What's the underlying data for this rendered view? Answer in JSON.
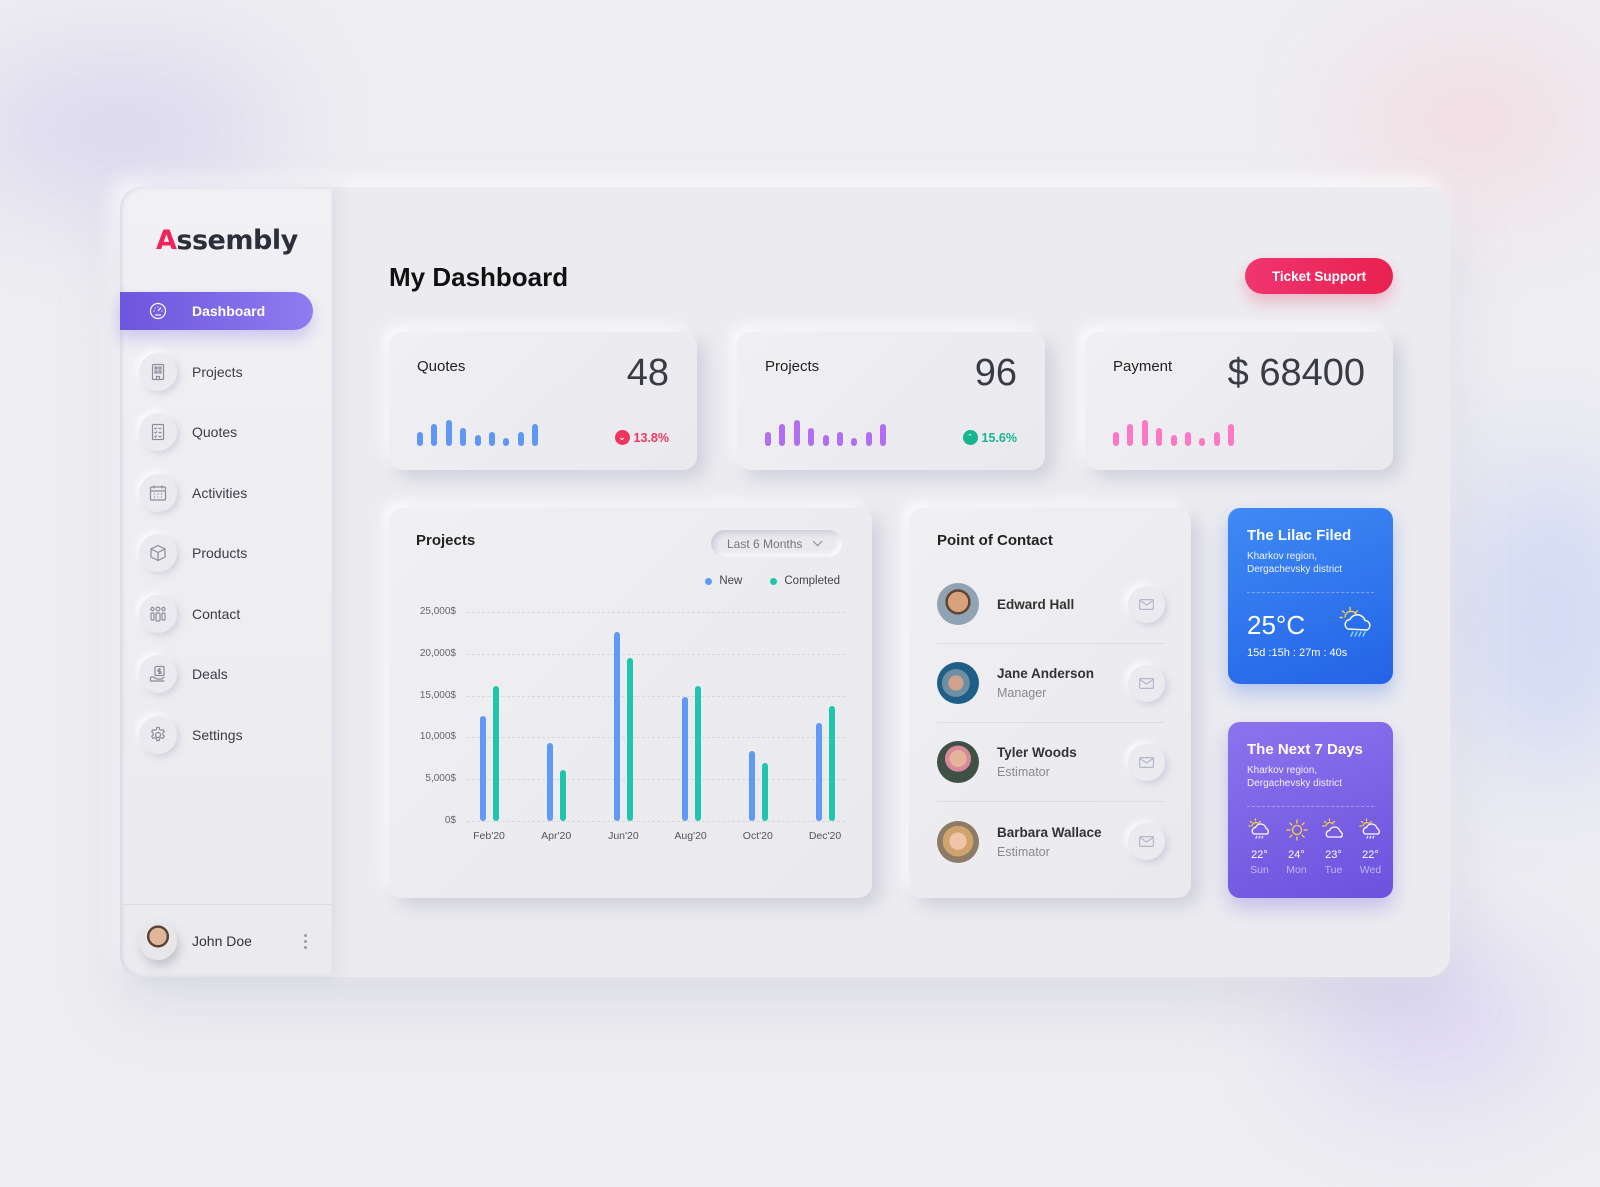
{
  "app": {
    "logo_prefix": "A",
    "logo_rest": "ssembly",
    "brand_color": "#f0245a",
    "accent_color": "#6d55dd"
  },
  "sidebar": {
    "items": [
      {
        "label": "Dashboard",
        "icon": "dashboard-gauge-icon",
        "active": true
      },
      {
        "label": "Projects",
        "icon": "building-icon",
        "active": false
      },
      {
        "label": "Quotes",
        "icon": "checklist-document-icon",
        "active": false
      },
      {
        "label": "Activities",
        "icon": "calendar-icon",
        "active": false
      },
      {
        "label": "Products",
        "icon": "box-icon",
        "active": false
      },
      {
        "label": "Contact",
        "icon": "people-group-icon",
        "active": false
      },
      {
        "label": "Deals",
        "icon": "hand-dollar-icon",
        "active": false
      },
      {
        "label": "Settings",
        "icon": "gear-icon",
        "active": false
      }
    ],
    "user": {
      "name": "John Doe"
    }
  },
  "header": {
    "title": "My Dashboard",
    "ticket_button": "Ticket Support"
  },
  "stats": [
    {
      "title": "Quotes",
      "value": "48",
      "delta": "13.8%",
      "trend": "down",
      "color": "#5f97f5",
      "delta_color": "#f0365f",
      "spark": [
        14,
        22,
        26,
        18,
        11,
        14,
        8,
        14,
        22
      ]
    },
    {
      "title": "Projects",
      "value": "96",
      "delta": "15.6%",
      "trend": "up",
      "color": "#b16ef2",
      "delta_color": "#16b58f",
      "spark": [
        14,
        22,
        26,
        18,
        11,
        14,
        8,
        14,
        22
      ]
    },
    {
      "title": "Payment",
      "value": "$ 68400",
      "delta": null,
      "trend": null,
      "color": "#fa78c4",
      "delta_color": null,
      "spark": [
        14,
        22,
        26,
        18,
        11,
        14,
        8,
        14,
        22
      ]
    }
  ],
  "projects_chart": {
    "title": "Projects",
    "range": "Last 6 Months",
    "legend": [
      {
        "label": "New",
        "color": "#6199f7"
      },
      {
        "label": "Completed",
        "color": "#1fc6ad"
      }
    ]
  },
  "chart_data": {
    "type": "bar",
    "title": "Projects",
    "categories": [
      "Feb'20",
      "Apr'20",
      "Jun'20",
      "Aug'20",
      "Oct'20",
      "Dec'20"
    ],
    "series": [
      {
        "name": "New",
        "color": "#6199f7",
        "values": [
          12600,
          9300,
          22600,
          14800,
          8400,
          11700
        ]
      },
      {
        "name": "Completed",
        "color": "#1fc6ad",
        "values": [
          16200,
          6100,
          19500,
          16200,
          6900,
          13800
        ]
      }
    ],
    "y_ticks": [
      "25,000$",
      "20,000$",
      "15,000$",
      "10,000$",
      "5,000$",
      "0$"
    ],
    "ylim": [
      0,
      25000
    ],
    "xlabel": "",
    "ylabel": "",
    "grid": true,
    "legend_position": "top-right"
  },
  "contacts": {
    "title": "Point of Contact",
    "items": [
      {
        "name": "Edward Hall",
        "role": ""
      },
      {
        "name": "Jane Anderson",
        "role": "Manager"
      },
      {
        "name": "Tyler Woods",
        "role": "Estimator"
      },
      {
        "name": "Barbara Wallace",
        "role": "Estimator"
      }
    ]
  },
  "weather_now": {
    "title": "The Lilac Filed",
    "region": "Kharkov region,",
    "district": "Dergachevsky district",
    "temp": "25°C",
    "icon": "sun-cloud-rain-icon",
    "countdown": "15d :15h : 27m : 40s"
  },
  "weather_week": {
    "title": "The Next 7 Days",
    "region": "Kharkov region,",
    "district": "Dergachevsky district",
    "days": [
      {
        "temp": "22°",
        "day": "Sun",
        "icon": "sun-cloud-rain-icon"
      },
      {
        "temp": "24°",
        "day": "Mon",
        "icon": "sun-icon"
      },
      {
        "temp": "23°",
        "day": "Tue",
        "icon": "sun-cloud-icon"
      },
      {
        "temp": "22°",
        "day": "Wed",
        "icon": "sun-cloud-rain-icon"
      }
    ]
  }
}
